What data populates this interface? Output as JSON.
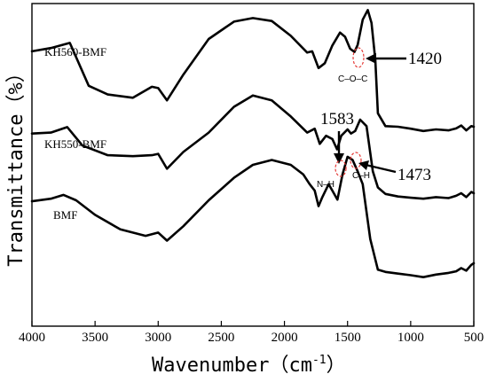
{
  "chart_data": {
    "type": "line",
    "title": "",
    "xlabel": "Wavenumber（cm",
    "xlabel_sup": "-1",
    "xlabel_close": "）",
    "ylabel": "Transmittance（%）",
    "xlim": [
      4000,
      500
    ],
    "x_reversed": true,
    "y_ticks_shown": false,
    "x_ticks": [
      4000,
      3500,
      3000,
      2500,
      2000,
      1500,
      1000,
      500
    ],
    "x_tick_labels": [
      "4000",
      "3500",
      "3000",
      "2500",
      "2000",
      "1500",
      "1000",
      "500"
    ],
    "grid": false,
    "series": [
      {
        "name": "KH560-BMF",
        "points": [
          [
            4000,
            0.852
          ],
          [
            3850,
            0.862
          ],
          [
            3700,
            0.878
          ],
          [
            3550,
            0.745
          ],
          [
            3400,
            0.718
          ],
          [
            3200,
            0.708
          ],
          [
            3050,
            0.742
          ],
          [
            3000,
            0.738
          ],
          [
            2930,
            0.7
          ],
          [
            2800,
            0.78
          ],
          [
            2600,
            0.89
          ],
          [
            2400,
            0.944
          ],
          [
            2250,
            0.955
          ],
          [
            2100,
            0.946
          ],
          [
            1950,
            0.9
          ],
          [
            1820,
            0.848
          ],
          [
            1780,
            0.852
          ],
          [
            1730,
            0.8
          ],
          [
            1680,
            0.815
          ],
          [
            1620,
            0.87
          ],
          [
            1560,
            0.91
          ],
          [
            1520,
            0.897
          ],
          [
            1480,
            0.86
          ],
          [
            1445,
            0.85
          ],
          [
            1420,
            0.872
          ],
          [
            1380,
            0.95
          ],
          [
            1340,
            0.98
          ],
          [
            1310,
            0.94
          ],
          [
            1280,
            0.825
          ],
          [
            1260,
            0.66
          ],
          [
            1200,
            0.62
          ],
          [
            1100,
            0.618
          ],
          [
            1000,
            0.612
          ],
          [
            900,
            0.605
          ],
          [
            800,
            0.61
          ],
          [
            700,
            0.607
          ],
          [
            640,
            0.613
          ],
          [
            600,
            0.622
          ],
          [
            560,
            0.607
          ],
          [
            520,
            0.62
          ],
          [
            500,
            0.618
          ]
        ]
      },
      {
        "name": "KH550-BMF",
        "points": [
          [
            4000,
            0.597
          ],
          [
            3850,
            0.6
          ],
          [
            3720,
            0.617
          ],
          [
            3600,
            0.56
          ],
          [
            3400,
            0.53
          ],
          [
            3200,
            0.527
          ],
          [
            3050,
            0.53
          ],
          [
            3000,
            0.534
          ],
          [
            2930,
            0.488
          ],
          [
            2800,
            0.54
          ],
          [
            2600,
            0.6
          ],
          [
            2400,
            0.68
          ],
          [
            2250,
            0.715
          ],
          [
            2100,
            0.7
          ],
          [
            1950,
            0.65
          ],
          [
            1820,
            0.6
          ],
          [
            1760,
            0.612
          ],
          [
            1720,
            0.565
          ],
          [
            1670,
            0.59
          ],
          [
            1620,
            0.58
          ],
          [
            1583,
            0.548
          ],
          [
            1550,
            0.59
          ],
          [
            1500,
            0.61
          ],
          [
            1473,
            0.597
          ],
          [
            1440,
            0.605
          ],
          [
            1400,
            0.64
          ],
          [
            1350,
            0.62
          ],
          [
            1300,
            0.48
          ],
          [
            1260,
            0.43
          ],
          [
            1200,
            0.41
          ],
          [
            1100,
            0.402
          ],
          [
            1000,
            0.398
          ],
          [
            900,
            0.395
          ],
          [
            800,
            0.4
          ],
          [
            700,
            0.397
          ],
          [
            640,
            0.404
          ],
          [
            600,
            0.412
          ],
          [
            560,
            0.4
          ],
          [
            520,
            0.416
          ],
          [
            500,
            0.412
          ]
        ]
      },
      {
        "name": "BMF",
        "points": [
          [
            4000,
            0.387
          ],
          [
            3850,
            0.395
          ],
          [
            3750,
            0.407
          ],
          [
            3650,
            0.39
          ],
          [
            3500,
            0.345
          ],
          [
            3300,
            0.3
          ],
          [
            3100,
            0.28
          ],
          [
            3000,
            0.29
          ],
          [
            2930,
            0.265
          ],
          [
            2800,
            0.31
          ],
          [
            2600,
            0.39
          ],
          [
            2400,
            0.46
          ],
          [
            2250,
            0.5
          ],
          [
            2100,
            0.515
          ],
          [
            1950,
            0.5
          ],
          [
            1850,
            0.47
          ],
          [
            1800,
            0.44
          ],
          [
            1760,
            0.42
          ],
          [
            1730,
            0.372
          ],
          [
            1700,
            0.4
          ],
          [
            1650,
            0.44
          ],
          [
            1620,
            0.42
          ],
          [
            1580,
            0.392
          ],
          [
            1540,
            0.47
          ],
          [
            1500,
            0.525
          ],
          [
            1460,
            0.515
          ],
          [
            1420,
            0.48
          ],
          [
            1380,
            0.44
          ],
          [
            1320,
            0.27
          ],
          [
            1260,
            0.175
          ],
          [
            1200,
            0.168
          ],
          [
            1100,
            0.163
          ],
          [
            1000,
            0.158
          ],
          [
            900,
            0.152
          ],
          [
            800,
            0.16
          ],
          [
            700,
            0.165
          ],
          [
            640,
            0.17
          ],
          [
            600,
            0.18
          ],
          [
            560,
            0.172
          ],
          [
            520,
            0.19
          ],
          [
            500,
            0.195
          ]
        ]
      }
    ],
    "annotations": {
      "peak_1420": "1420",
      "peak_1583": "1583",
      "peak_1473": "1473",
      "bond_coc": "C–O–C",
      "bond_nh": "N–H",
      "bond_ch": "C–H"
    },
    "colors": {
      "line": "#000000",
      "ellipse": "#e53935"
    }
  }
}
